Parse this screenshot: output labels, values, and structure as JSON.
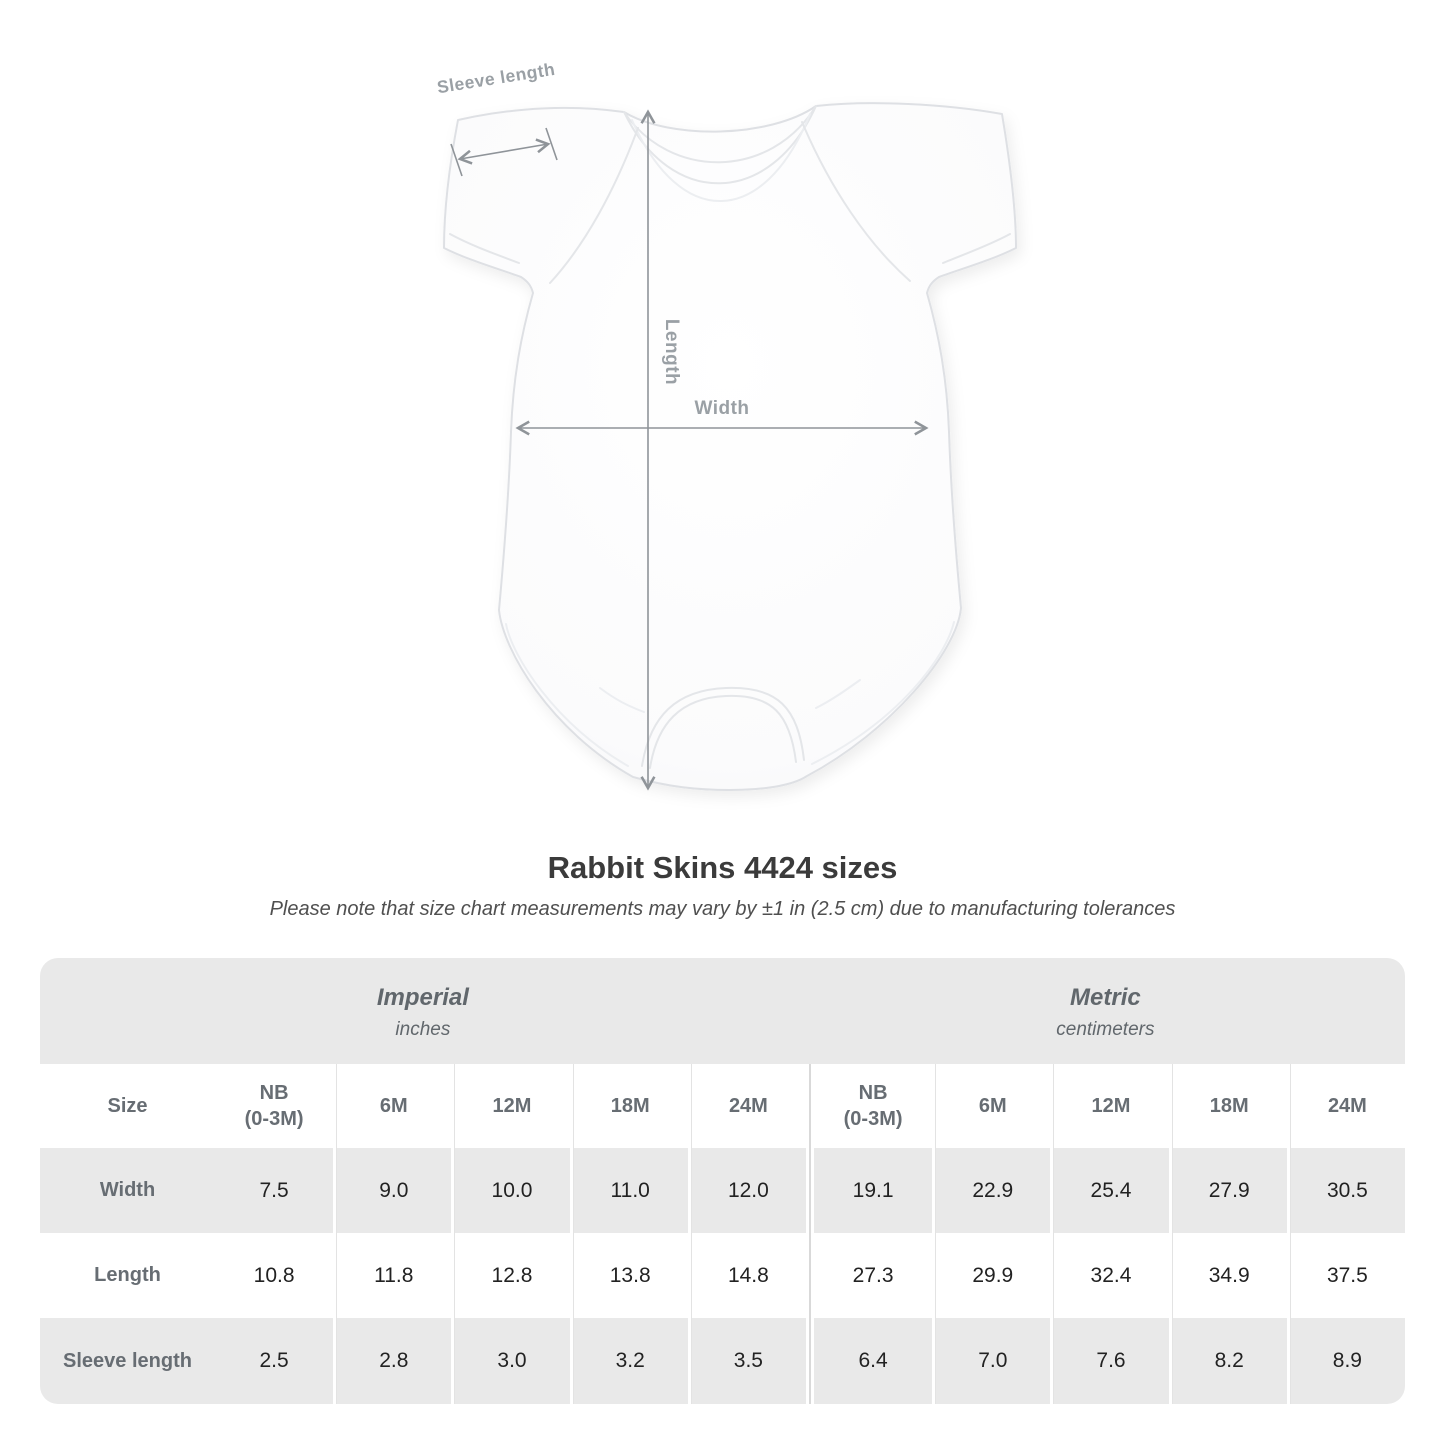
{
  "page": {
    "background": "#ffffff"
  },
  "diagram": {
    "labels": {
      "sleeve": "Sleeve length",
      "length": "Length",
      "width": "Width"
    },
    "colors": {
      "annotation_text": "#9aa0a5",
      "arrow": "#8f9499",
      "garment_outline": "#dee0e4"
    }
  },
  "header": {
    "title": "Rabbit Skins 4424 sizes",
    "subtitle": "Please note that size chart measurements may vary by ±1 in (2.5 cm) due to manufacturing tolerances"
  },
  "table": {
    "size_label": "Size",
    "groups": [
      {
        "label": "Imperial",
        "unit": "inches"
      },
      {
        "label": "Metric",
        "unit": "centimeters"
      }
    ],
    "sizes": [
      "NB\n(0-3M)",
      "6M",
      "12M",
      "18M",
      "24M"
    ],
    "rows": [
      {
        "label": "Width",
        "values": [
          "7.5",
          "9.0",
          "10.0",
          "11.0",
          "12.0",
          "19.1",
          "22.9",
          "25.4",
          "27.9",
          "30.5"
        ]
      },
      {
        "label": "Length",
        "values": [
          "10.8",
          "11.8",
          "12.8",
          "13.8",
          "14.8",
          "27.3",
          "29.9",
          "32.4",
          "34.9",
          "37.5"
        ]
      },
      {
        "label": "Sleeve length",
        "values": [
          "2.5",
          "2.8",
          "3.0",
          "3.2",
          "3.5",
          "6.4",
          "7.0",
          "7.6",
          "8.2",
          "8.9"
        ]
      }
    ],
    "colors": {
      "band": "#e9e9e9",
      "alt_row": "#e9e9e9",
      "header_text": "#676d73",
      "value_text": "#222222"
    }
  },
  "chart_data": {
    "type": "table",
    "title": "Rabbit Skins 4424 sizes",
    "note": "Please note that size chart measurements may vary by ±1 in (2.5 cm) due to manufacturing tolerances",
    "unit_groups": [
      {
        "label": "Imperial",
        "unit": "inches"
      },
      {
        "label": "Metric",
        "unit": "centimeters"
      }
    ],
    "columns": [
      "NB (0-3M)",
      "6M",
      "12M",
      "18M",
      "24M"
    ],
    "rows": [
      {
        "label": "Width",
        "imperial_in": [
          7.5,
          9.0,
          10.0,
          11.0,
          12.0
        ],
        "metric_cm": [
          19.1,
          22.9,
          25.4,
          27.9,
          30.5
        ]
      },
      {
        "label": "Length",
        "imperial_in": [
          10.8,
          11.8,
          12.8,
          13.8,
          14.8
        ],
        "metric_cm": [
          27.3,
          29.9,
          32.4,
          34.9,
          37.5
        ]
      },
      {
        "label": "Sleeve length",
        "imperial_in": [
          2.5,
          2.8,
          3.0,
          3.2,
          3.5
        ],
        "metric_cm": [
          6.4,
          7.0,
          7.6,
          8.2,
          8.9
        ]
      }
    ]
  }
}
